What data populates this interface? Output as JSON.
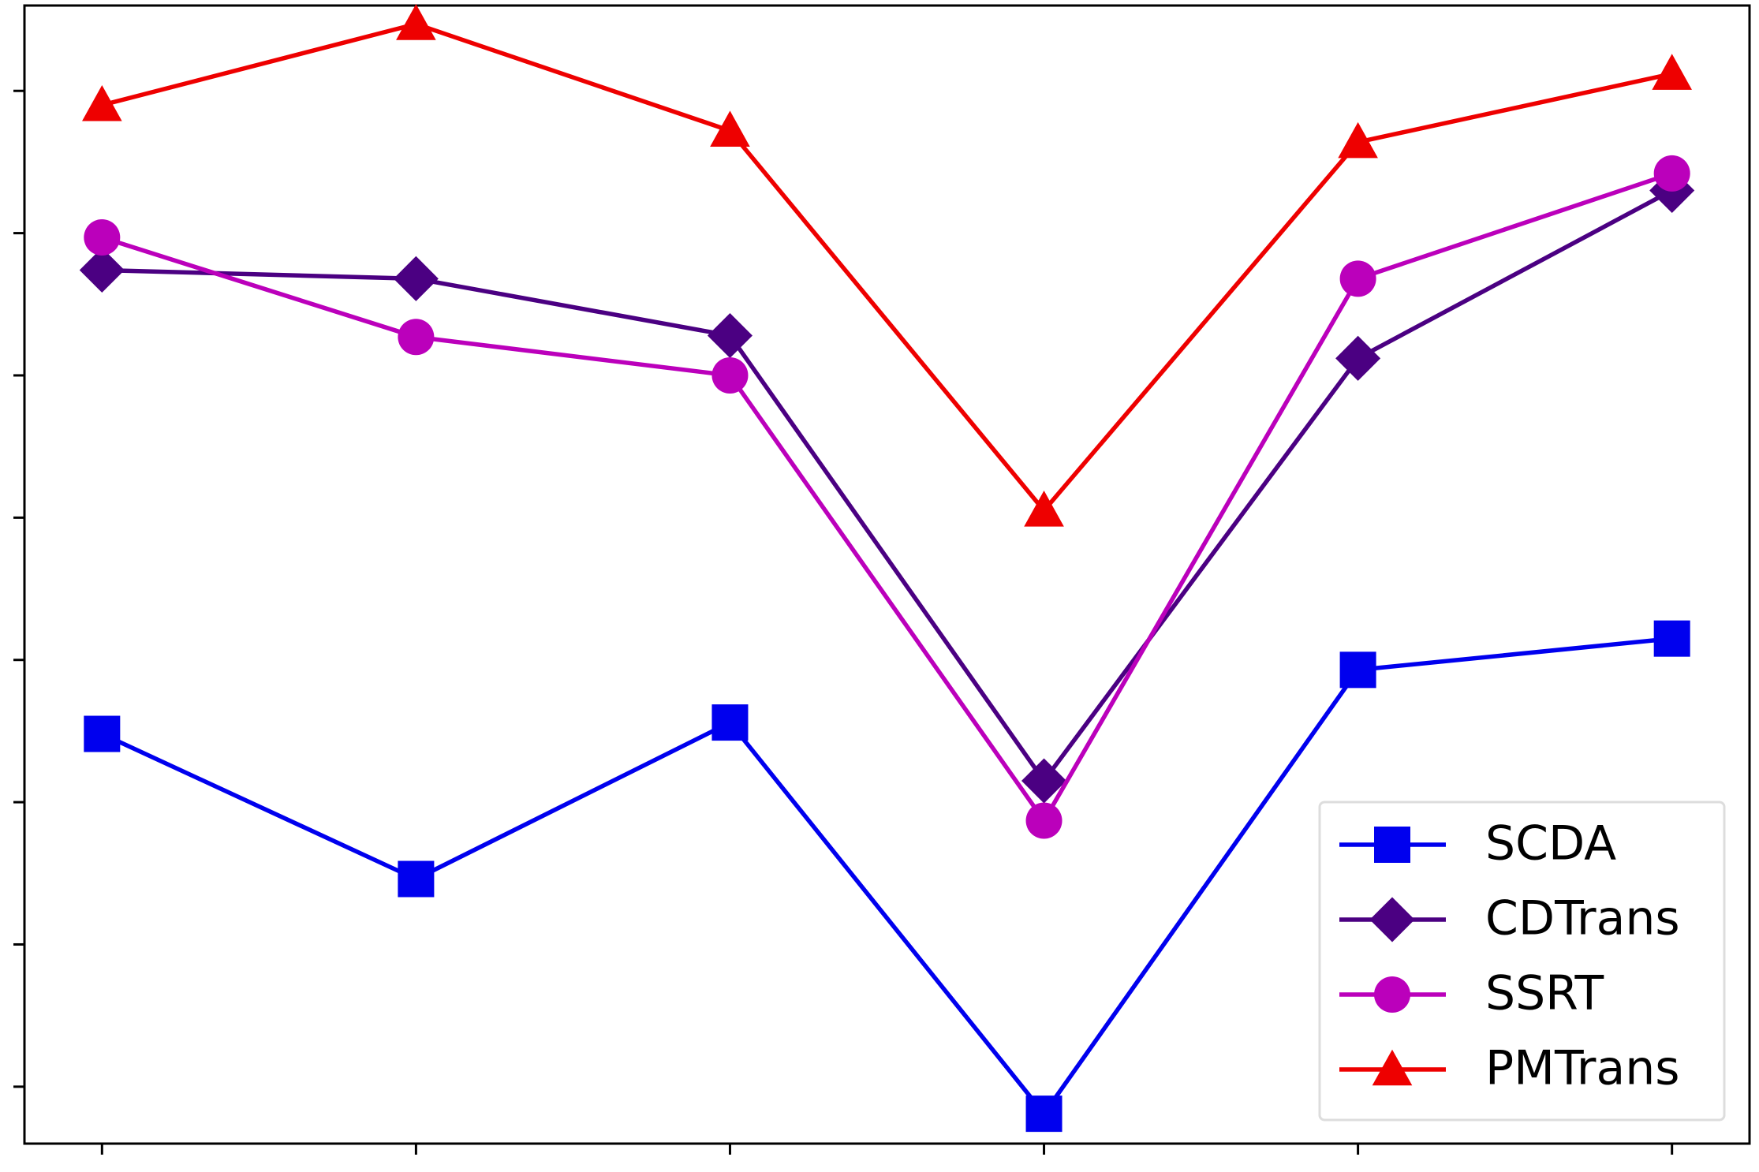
{
  "chart_data": {
    "type": "line",
    "categories": [
      null,
      null,
      null,
      null,
      null,
      null
    ],
    "series": [
      {
        "name": "SCDA",
        "color": "#0000ee",
        "marker": "square",
        "values": [
          3.48,
          2.46,
          3.56,
          0.81,
          3.93,
          4.15
        ]
      },
      {
        "name": "CDTrans",
        "color": "#4b0082",
        "marker": "diamond",
        "values": [
          6.74,
          6.68,
          6.28,
          3.15,
          6.12,
          7.3
        ]
      },
      {
        "name": "SSRT",
        "color": "#bb00bb",
        "marker": "circle",
        "values": [
          6.97,
          6.27,
          6.0,
          2.87,
          6.68,
          7.42
        ]
      },
      {
        "name": "PMTrans",
        "color": "#ee0000",
        "marker": "triangle",
        "values": [
          7.9,
          8.47,
          7.72,
          5.05,
          7.64,
          8.12
        ]
      }
    ],
    "ylim": [
      0.6,
      8.6
    ],
    "yticks": [
      1,
      2,
      3,
      4,
      5,
      6,
      7,
      8
    ],
    "grid": false,
    "legend": "lower right"
  }
}
